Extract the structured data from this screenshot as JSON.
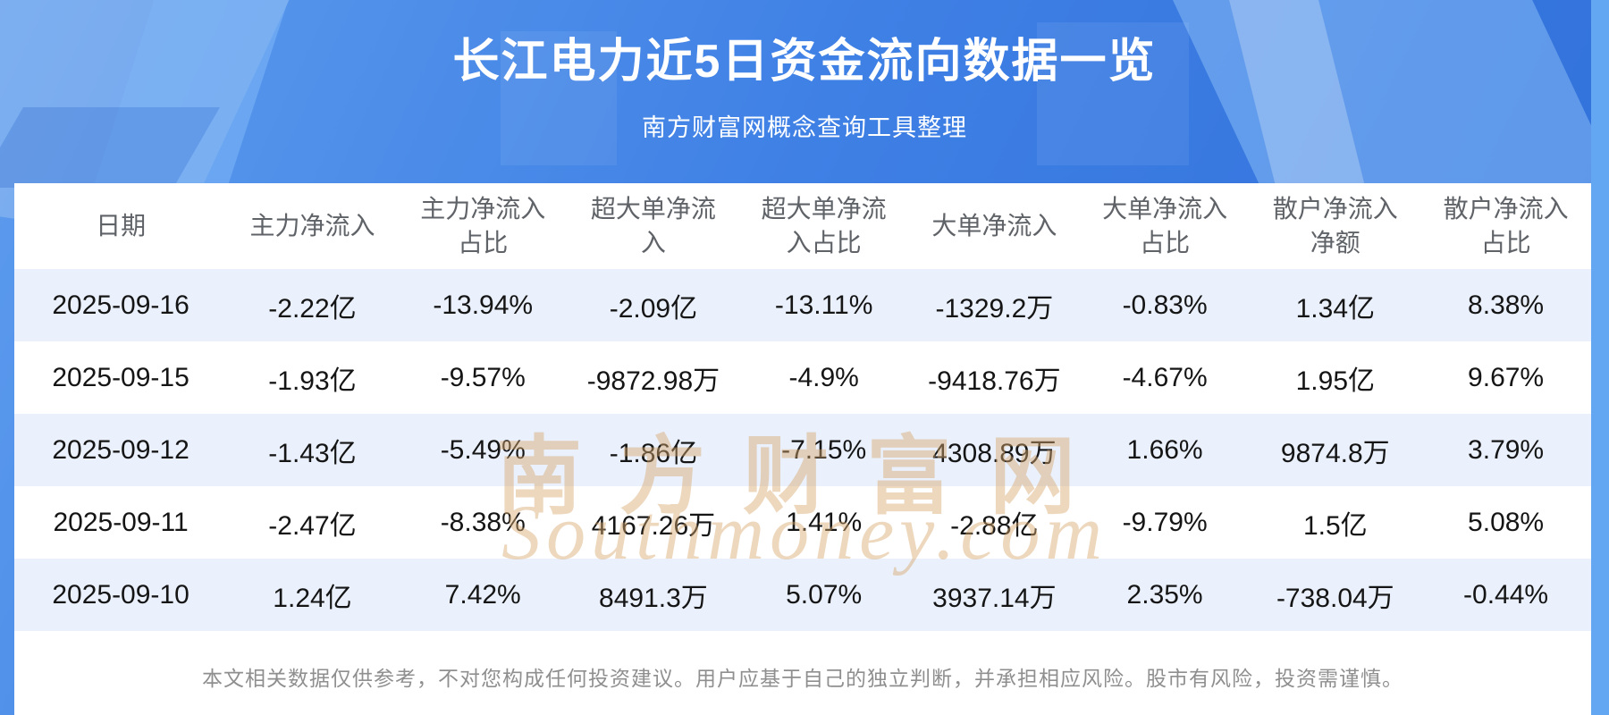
{
  "page": {
    "title": "长江电力近5日资金流向数据一览",
    "subtitle": "南方财富网概念查询工具整理",
    "disclaimer": "本文相关数据仅供参考，不对您构成任何投资建议。用户应基于自己的独立判断，并承担相应风险。股市有风险，投资需谨慎。",
    "watermark_cn": "南方财富网",
    "watermark_en": "Southmoney.com"
  },
  "chart_data": {
    "type": "table",
    "title": "长江电力近5日资金流向数据一览",
    "columns": [
      "日期",
      "主力净流入",
      "主力净流入占比",
      "超大单净流入",
      "超大单净流入占比",
      "大单净流入",
      "大单净流入占比",
      "散户净流入净额",
      "散户净流入占比"
    ],
    "rows": [
      [
        "2025-09-16",
        "-2.22亿",
        "-13.94%",
        "-2.09亿",
        "-13.11%",
        "-1329.2万",
        "-0.83%",
        "1.34亿",
        "8.38%"
      ],
      [
        "2025-09-15",
        "-1.93亿",
        "-9.57%",
        "-9872.98万",
        "-4.9%",
        "-9418.76万",
        "-4.67%",
        "1.95亿",
        "9.67%"
      ],
      [
        "2025-09-12",
        "-1.43亿",
        "-5.49%",
        "-1.86亿",
        "-7.15%",
        "4308.89万",
        "1.66%",
        "9874.8万",
        "3.79%"
      ],
      [
        "2025-09-11",
        "-2.47亿",
        "-8.38%",
        "4167.26万",
        "1.41%",
        "-2.88亿",
        "-9.79%",
        "1.5亿",
        "5.08%"
      ],
      [
        "2025-09-10",
        "1.24亿",
        "7.42%",
        "8491.3万",
        "5.07%",
        "3937.14万",
        "2.35%",
        "-738.04万",
        "-0.44%"
      ]
    ]
  },
  "colors": {
    "background_blue": "#3f80e5",
    "row_alternate": "#eaf1fc",
    "header_text": "#5f6368",
    "body_text": "#151515",
    "watermark_gold": "#d8a86e"
  }
}
